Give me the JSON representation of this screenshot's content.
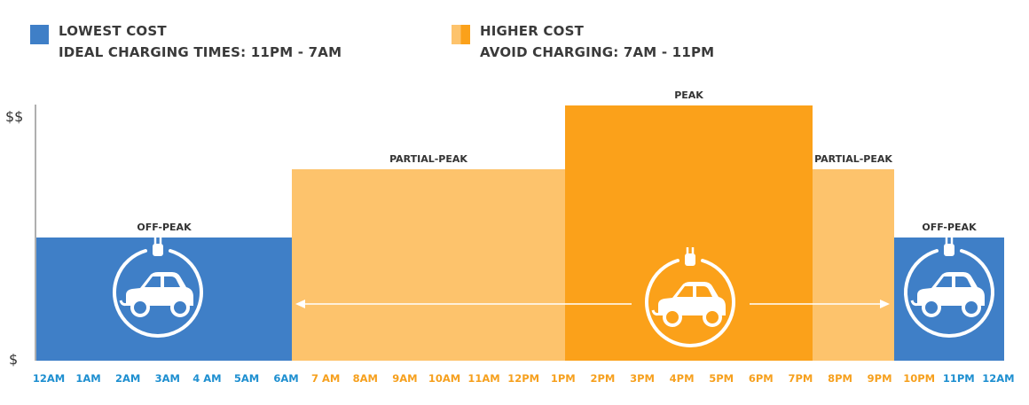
{
  "legend": {
    "lowest": {
      "title": "LOWEST COST",
      "subtitle": "IDEAL CHARGING TIMES: 11PM - 7AM",
      "color": "#3f7fc7"
    },
    "higher": {
      "title": "HIGHER COST",
      "subtitle": "AVOID CHARGING: 7AM - 11PM",
      "colors": [
        "#fdc36c",
        "#fba11a"
      ]
    }
  },
  "chart_data": {
    "type": "bar",
    "y_axis_labels": [
      "$$",
      "$"
    ],
    "hours": [
      "12AM",
      "1AM",
      "2AM",
      "3AM",
      "4 AM",
      "5AM",
      "6AM",
      "7 AM",
      "8AM",
      "9AM",
      "10AM",
      "11AM",
      "12PM",
      "1PM",
      "2PM",
      "3PM",
      "4PM",
      "5PM",
      "6PM",
      "7PM",
      "8PM",
      "9PM",
      "10PM",
      "11PM",
      "12AM"
    ],
    "hour_tick_colors": [
      "#1e8fd0",
      "#1e8fd0",
      "#1e8fd0",
      "#1e8fd0",
      "#1e8fd0",
      "#1e8fd0",
      "#1e8fd0",
      "#f6a01e",
      "#f6a01e",
      "#f6a01e",
      "#f6a01e",
      "#f6a01e",
      "#f6a01e",
      "#f6a01e",
      "#f6a01e",
      "#f6a01e",
      "#f6a01e",
      "#f6a01e",
      "#f6a01e",
      "#f6a01e",
      "#f6a01e",
      "#f6a01e",
      "#f6a01e",
      "#1e8fd0",
      "#1e8fd0"
    ],
    "segments": [
      {
        "label": "OFF-PEAK",
        "start_hour": 0,
        "end_hour": 7,
        "level": 1,
        "color": "#3f7fc7"
      },
      {
        "label": "PARTIAL-PEAK",
        "start_hour": 7,
        "end_hour": 14,
        "level": 2,
        "color": "#fdc36c"
      },
      {
        "label": "PEAK",
        "start_hour": 14,
        "end_hour": 21,
        "level": 3,
        "color": "#fba11a"
      },
      {
        "label": "PARTIAL-PEAK",
        "start_hour": 21,
        "end_hour": 23,
        "level": 2,
        "color": "#fdc36c"
      },
      {
        "label": "OFF-PEAK",
        "start_hour": 23,
        "end_hour": 24,
        "level": 1,
        "color": "#3f7fc7"
      }
    ],
    "level_range": [
      0,
      3
    ],
    "icons": [
      "ev-charging-car-icon",
      "ev-charging-car-icon",
      "ev-charging-car-icon"
    ],
    "arrow": "double-headed-arrow"
  }
}
